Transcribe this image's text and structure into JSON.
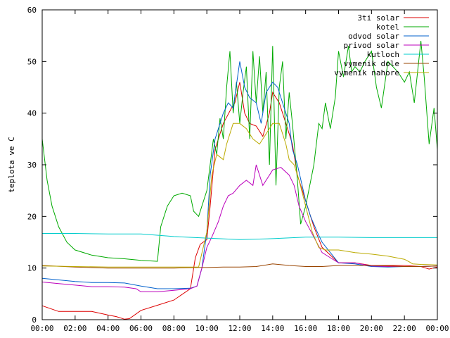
{
  "chart_data": {
    "type": "line",
    "ylabel": "teplota ve C",
    "xlabel": "",
    "title": "",
    "ylim": [
      0,
      60
    ],
    "xlim": [
      0,
      24
    ],
    "x_ticks": [
      "00:00",
      "02:00",
      "04:00",
      "06:00",
      "08:00",
      "10:00",
      "12:00",
      "14:00",
      "16:00",
      "18:00",
      "20:00",
      "22:00",
      "00:00"
    ],
    "y_ticks": [
      "0",
      "10",
      "20",
      "30",
      "40",
      "50",
      "60"
    ],
    "legend_position": "top-right",
    "grid": false,
    "series": [
      {
        "name": "3ti solar",
        "color": "#dd0000",
        "points": [
          [
            0,
            2.7
          ],
          [
            1,
            1.6
          ],
          [
            2,
            1.6
          ],
          [
            3,
            1.6
          ],
          [
            4,
            0.9
          ],
          [
            4.5,
            0.6
          ],
          [
            5,
            0.1
          ],
          [
            5.3,
            0.2
          ],
          [
            6,
            1.8
          ],
          [
            7,
            2.8
          ],
          [
            8,
            3.8
          ],
          [
            9,
            6
          ],
          [
            9.3,
            12
          ],
          [
            9.6,
            14.6
          ],
          [
            10,
            15.5
          ],
          [
            10.2,
            22
          ],
          [
            10.5,
            33
          ],
          [
            11,
            38
          ],
          [
            11.5,
            41
          ],
          [
            11.7,
            42
          ],
          [
            12,
            46
          ],
          [
            12.3,
            40
          ],
          [
            12.6,
            38
          ],
          [
            13,
            37.5
          ],
          [
            13.4,
            35.5
          ],
          [
            13.8,
            40
          ],
          [
            14,
            44
          ],
          [
            14.4,
            42
          ],
          [
            14.8,
            38
          ],
          [
            15.2,
            34
          ],
          [
            15.5,
            28
          ],
          [
            16,
            23
          ],
          [
            16.5,
            18
          ],
          [
            17,
            14
          ],
          [
            17.5,
            12.5
          ],
          [
            18,
            11
          ],
          [
            19,
            11
          ],
          [
            20,
            10.5
          ],
          [
            21,
            10.5
          ],
          [
            22,
            10.5
          ],
          [
            23,
            10.3
          ],
          [
            23.5,
            9.8
          ],
          [
            24,
            10.2
          ]
        ]
      },
      {
        "name": "kotel",
        "color": "#00aa00",
        "points": [
          [
            0,
            35
          ],
          [
            0.3,
            27
          ],
          [
            0.6,
            22
          ],
          [
            1,
            18
          ],
          [
            1.5,
            15
          ],
          [
            2,
            13.5
          ],
          [
            3,
            12.5
          ],
          [
            4,
            12
          ],
          [
            5,
            11.8
          ],
          [
            6,
            11.5
          ],
          [
            7,
            11.3
          ],
          [
            7.2,
            18
          ],
          [
            7.6,
            22
          ],
          [
            8,
            24
          ],
          [
            8.5,
            24.5
          ],
          [
            9,
            24
          ],
          [
            9.2,
            21
          ],
          [
            9.5,
            20
          ],
          [
            9.7,
            22
          ],
          [
            10,
            25
          ],
          [
            10.2,
            30
          ],
          [
            10.4,
            35
          ],
          [
            10.6,
            32
          ],
          [
            10.8,
            39
          ],
          [
            11,
            35
          ],
          [
            11.2,
            45
          ],
          [
            11.4,
            52
          ],
          [
            11.6,
            40
          ],
          [
            11.8,
            46
          ],
          [
            12,
            38
          ],
          [
            12.2,
            44
          ],
          [
            12.4,
            49
          ],
          [
            12.6,
            35
          ],
          [
            12.8,
            52
          ],
          [
            13,
            42
          ],
          [
            13.2,
            51
          ],
          [
            13.4,
            40
          ],
          [
            13.6,
            48
          ],
          [
            13.8,
            30
          ],
          [
            14,
            53
          ],
          [
            14.2,
            26
          ],
          [
            14.4,
            45
          ],
          [
            14.6,
            50
          ],
          [
            14.8,
            35
          ],
          [
            15,
            44
          ],
          [
            15.2,
            38
          ],
          [
            15.5,
            27
          ],
          [
            15.7,
            18.5
          ],
          [
            16,
            22
          ],
          [
            16.5,
            30
          ],
          [
            16.8,
            38
          ],
          [
            17,
            37
          ],
          [
            17.2,
            42
          ],
          [
            17.5,
            37
          ],
          [
            17.8,
            43
          ],
          [
            18,
            52
          ],
          [
            18.3,
            47
          ],
          [
            18.6,
            53
          ],
          [
            18.8,
            48
          ],
          [
            19,
            49
          ],
          [
            19.3,
            48
          ],
          [
            19.6,
            50
          ],
          [
            20,
            52
          ],
          [
            20.3,
            45
          ],
          [
            20.6,
            41
          ],
          [
            21,
            50
          ],
          [
            21.3,
            49
          ],
          [
            21.6,
            48
          ],
          [
            22,
            46
          ],
          [
            22.3,
            48
          ],
          [
            22.6,
            42
          ],
          [
            23,
            54
          ],
          [
            23.2,
            47
          ],
          [
            23.5,
            34
          ],
          [
            23.8,
            41
          ],
          [
            24,
            33
          ]
        ]
      },
      {
        "name": "odvod solar",
        "color": "#0060cc",
        "points": [
          [
            0,
            8
          ],
          [
            1,
            7.7
          ],
          [
            2,
            7.4
          ],
          [
            3,
            7.2
          ],
          [
            4,
            7.2
          ],
          [
            5,
            7.1
          ],
          [
            6,
            6.5
          ],
          [
            7,
            6
          ],
          [
            8,
            6
          ],
          [
            9,
            6.1
          ],
          [
            9.4,
            6.5
          ],
          [
            9.7,
            10
          ],
          [
            10,
            17
          ],
          [
            10.2,
            28
          ],
          [
            10.5,
            35
          ],
          [
            11,
            40
          ],
          [
            11.3,
            42
          ],
          [
            11.6,
            41
          ],
          [
            12,
            50
          ],
          [
            12.3,
            45
          ],
          [
            12.6,
            43
          ],
          [
            13,
            42
          ],
          [
            13.3,
            38
          ],
          [
            13.6,
            44
          ],
          [
            14,
            46
          ],
          [
            14.3,
            45
          ],
          [
            14.6,
            42
          ],
          [
            15,
            38
          ],
          [
            15.2,
            33
          ],
          [
            15.5,
            30
          ],
          [
            16,
            23
          ],
          [
            16.3,
            20
          ],
          [
            16.7,
            17
          ],
          [
            17,
            15
          ],
          [
            17.5,
            13
          ],
          [
            18,
            11
          ],
          [
            19,
            10.8
          ],
          [
            20,
            10.3
          ],
          [
            21,
            10.2
          ],
          [
            22,
            10.3
          ],
          [
            23,
            10.3
          ],
          [
            24,
            10.4
          ]
        ]
      },
      {
        "name": "privod solar",
        "color": "#bb00bb",
        "points": [
          [
            0,
            7.3
          ],
          [
            1,
            7
          ],
          [
            2,
            6.7
          ],
          [
            3,
            6.4
          ],
          [
            4,
            6.4
          ],
          [
            5,
            6.3
          ],
          [
            5.7,
            6
          ],
          [
            6,
            5.4
          ],
          [
            7,
            5.4
          ],
          [
            8,
            5.7
          ],
          [
            9,
            6
          ],
          [
            9.4,
            6.5
          ],
          [
            9.7,
            10
          ],
          [
            10,
            14
          ],
          [
            10.3,
            16
          ],
          [
            10.7,
            19
          ],
          [
            11,
            22
          ],
          [
            11.3,
            24
          ],
          [
            11.6,
            24.5
          ],
          [
            12,
            26
          ],
          [
            12.4,
            27
          ],
          [
            12.8,
            26
          ],
          [
            13,
            30
          ],
          [
            13.4,
            26
          ],
          [
            13.8,
            28
          ],
          [
            14,
            29
          ],
          [
            14.5,
            29.5
          ],
          [
            15,
            28
          ],
          [
            15.3,
            26
          ],
          [
            15.6,
            22
          ],
          [
            16,
            19
          ],
          [
            16.5,
            16
          ],
          [
            17,
            13
          ],
          [
            17.5,
            12
          ],
          [
            18,
            11
          ],
          [
            19,
            11
          ],
          [
            20,
            10.4
          ],
          [
            21,
            10.3
          ],
          [
            22,
            10.3
          ],
          [
            23,
            10.3
          ],
          [
            24,
            10.4
          ]
        ]
      },
      {
        "name": "kutloch",
        "color": "#00cccc",
        "points": [
          [
            0,
            16.7
          ],
          [
            2,
            16.7
          ],
          [
            4,
            16.6
          ],
          [
            6,
            16.6
          ],
          [
            8,
            16.1
          ],
          [
            10,
            15.8
          ],
          [
            12,
            15.5
          ],
          [
            14,
            15.7
          ],
          [
            16,
            16
          ],
          [
            18,
            16
          ],
          [
            20,
            15.9
          ],
          [
            22,
            15.9
          ],
          [
            24,
            15.9
          ]
        ]
      },
      {
        "name": "vymenik dole",
        "color": "#994400",
        "points": [
          [
            0,
            10.5
          ],
          [
            2,
            10.2
          ],
          [
            4,
            10
          ],
          [
            6,
            10
          ],
          [
            8,
            10
          ],
          [
            9.5,
            10.1
          ],
          [
            10,
            10.1
          ],
          [
            11,
            10.2
          ],
          [
            12,
            10.2
          ],
          [
            13,
            10.3
          ],
          [
            14,
            10.8
          ],
          [
            15,
            10.5
          ],
          [
            16,
            10.3
          ],
          [
            17,
            10.3
          ],
          [
            18,
            10.5
          ],
          [
            19,
            10.5
          ],
          [
            20,
            10.5
          ],
          [
            21,
            10.4
          ],
          [
            22,
            10.3
          ],
          [
            23,
            10.3
          ],
          [
            24,
            10.4
          ]
        ]
      },
      {
        "name": "vymenik nahore",
        "color": "#bbaa00",
        "points": [
          [
            0,
            10.4
          ],
          [
            2,
            10.3
          ],
          [
            4,
            10.2
          ],
          [
            6,
            10.2
          ],
          [
            8,
            10.2
          ],
          [
            9.5,
            10.2
          ],
          [
            10,
            17
          ],
          [
            10.3,
            28
          ],
          [
            10.6,
            32
          ],
          [
            11,
            31
          ],
          [
            11.2,
            34
          ],
          [
            11.6,
            38
          ],
          [
            12,
            38
          ],
          [
            12.4,
            37
          ],
          [
            12.8,
            35
          ],
          [
            13.2,
            34
          ],
          [
            13.6,
            36
          ],
          [
            14,
            38
          ],
          [
            14.4,
            38
          ],
          [
            14.8,
            34
          ],
          [
            15,
            31
          ],
          [
            15.3,
            30
          ],
          [
            15.6,
            27
          ],
          [
            16,
            22
          ],
          [
            16.4,
            17
          ],
          [
            16.8,
            14
          ],
          [
            17.2,
            13.5
          ],
          [
            18,
            13.5
          ],
          [
            19,
            13
          ],
          [
            20,
            12.7
          ],
          [
            21,
            12.3
          ],
          [
            21.5,
            12
          ],
          [
            22,
            11.7
          ],
          [
            22.3,
            11.2
          ],
          [
            22.5,
            10.8
          ],
          [
            23,
            10.7
          ],
          [
            24,
            10.6
          ]
        ]
      }
    ]
  }
}
